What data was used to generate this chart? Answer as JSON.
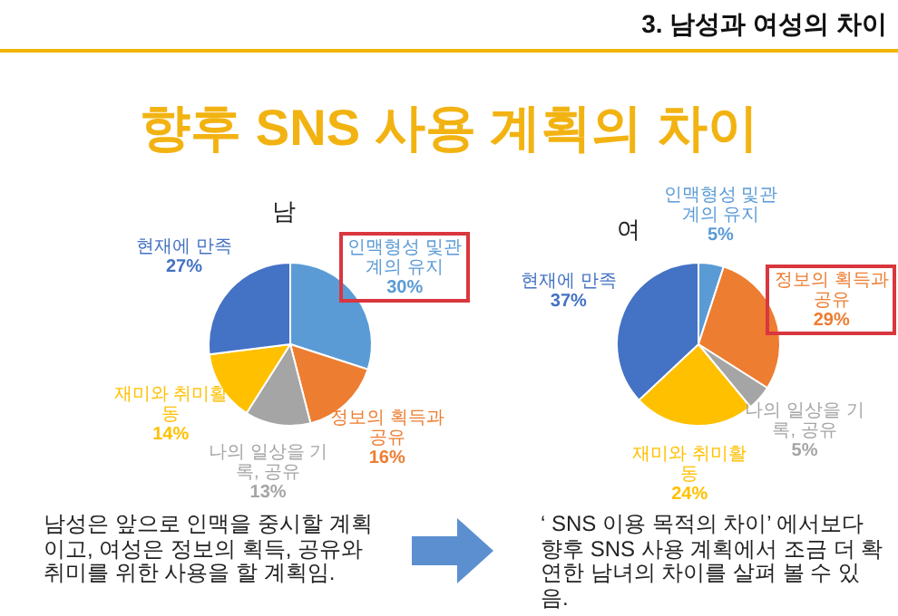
{
  "chart_data": [
    {
      "type": "pie",
      "title": "남",
      "categories": [
        "인맥형성 및관계의 유지",
        "정보의 획득과 공유",
        "나의 일상을 기록, 공유",
        "재미와 취미활동",
        "현재에 만족"
      ],
      "values": [
        30,
        16,
        13,
        14,
        27
      ],
      "value_labels": [
        "30%",
        "16%",
        "13%",
        "14%",
        "27%"
      ],
      "colors": [
        "#5b9bd5",
        "#ed7d31",
        "#a5a5a5",
        "#ffc000",
        "#4472c4"
      ],
      "annotations": [
        "3. 남성과 여성의 차이",
        "향후 SNS 사용 계획의 차이",
        "남성은 앞으로 인맥을 중시할 계획이고, 여성은 정보의 획득, 공유와  취미를 위한 사용을 할 계획임."
      ]
    },
    {
      "type": "pie",
      "title": "여",
      "categories": [
        "인맥형성 및관계의 유지",
        "정보의 획득과 공유",
        "나의 일상을 기록, 공유",
        "재미와 취미활동",
        "현재에 만족"
      ],
      "values": [
        5,
        29,
        5,
        24,
        37
      ],
      "value_labels": [
        "5%",
        "29%",
        "5%",
        "24%",
        "37%"
      ],
      "colors": [
        "#5b9bd5",
        "#ed7d31",
        "#a5a5a5",
        "#ffc000",
        "#4472c4"
      ],
      "annotations": [
        "‘ SNS 이용 목적의 차이’ 에서보다 향후 SNS 사용 계획에서 조금 더 확연한 남녀의 차이를 살펴 볼 수 있음."
      ]
    }
  ]
}
